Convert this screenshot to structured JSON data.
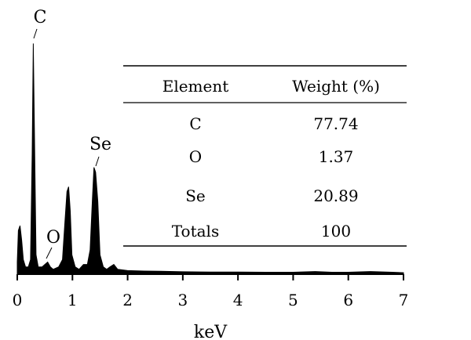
{
  "chart_data": {
    "type": "area",
    "title": "",
    "xlabel": "keV",
    "ylabel": "",
    "xlim": [
      0,
      7
    ],
    "ylim": [
      0,
      1
    ],
    "x_ticks": [
      0,
      1,
      2,
      3,
      4,
      5,
      6,
      7
    ],
    "grid": false,
    "series": [
      {
        "values": [
          [
            0.0,
            0.05
          ],
          [
            0.02,
            0.18
          ],
          [
            0.05,
            0.2
          ],
          [
            0.08,
            0.14
          ],
          [
            0.11,
            0.06
          ],
          [
            0.15,
            0.03
          ],
          [
            0.2,
            0.03
          ],
          [
            0.24,
            0.06
          ],
          [
            0.27,
            0.5
          ],
          [
            0.29,
            0.95
          ],
          [
            0.31,
            0.6
          ],
          [
            0.34,
            0.08
          ],
          [
            0.38,
            0.03
          ],
          [
            0.45,
            0.03
          ],
          [
            0.5,
            0.04
          ],
          [
            0.55,
            0.05
          ],
          [
            0.6,
            0.03
          ],
          [
            0.65,
            0.02
          ],
          [
            0.75,
            0.03
          ],
          [
            0.82,
            0.06
          ],
          [
            0.86,
            0.2
          ],
          [
            0.9,
            0.34
          ],
          [
            0.93,
            0.36
          ],
          [
            0.96,
            0.26
          ],
          [
            0.99,
            0.08
          ],
          [
            1.05,
            0.03
          ],
          [
            1.12,
            0.02
          ],
          [
            1.2,
            0.04
          ],
          [
            1.27,
            0.04
          ],
          [
            1.32,
            0.1
          ],
          [
            1.36,
            0.3
          ],
          [
            1.39,
            0.44
          ],
          [
            1.42,
            0.42
          ],
          [
            1.46,
            0.3
          ],
          [
            1.5,
            0.08
          ],
          [
            1.56,
            0.03
          ],
          [
            1.62,
            0.02
          ],
          [
            1.68,
            0.03
          ],
          [
            1.75,
            0.04
          ],
          [
            1.82,
            0.02
          ],
          [
            2.0,
            0.015
          ],
          [
            2.3,
            0.013
          ],
          [
            2.6,
            0.012
          ],
          [
            3.0,
            0.01
          ],
          [
            3.5,
            0.009
          ],
          [
            4.0,
            0.009
          ],
          [
            4.5,
            0.008
          ],
          [
            5.0,
            0.008
          ],
          [
            5.4,
            0.011
          ],
          [
            5.7,
            0.008
          ],
          [
            6.0,
            0.008
          ],
          [
            6.4,
            0.011
          ],
          [
            6.8,
            0.008
          ],
          [
            7.0,
            0.006
          ]
        ]
      }
    ],
    "annotations": [
      {
        "text": "C",
        "x": 0.29
      },
      {
        "text": "O",
        "x": 0.55
      },
      {
        "text": "Se",
        "x": 1.39
      }
    ]
  },
  "table": {
    "headers": [
      "Element",
      "Weight (%)"
    ],
    "rows": [
      [
        "C",
        "77.74"
      ],
      [
        "O",
        "1.37"
      ],
      [
        "Se",
        "20.89"
      ],
      [
        "Totals",
        "100"
      ]
    ]
  }
}
